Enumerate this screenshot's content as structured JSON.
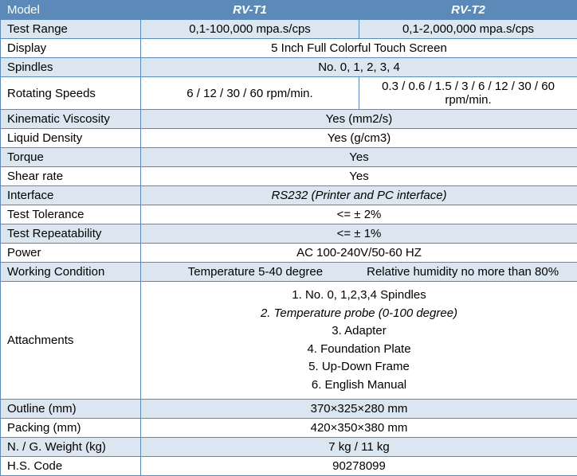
{
  "header": {
    "model": "Model",
    "m1": "RV-T1",
    "m2": "RV-T2"
  },
  "rows": {
    "test_range": {
      "label": "Test Range",
      "v1": "0,1-100,000 mpa.s/cps",
      "v2": "0,1-2,000,000 mpa.s/cps"
    },
    "display": {
      "label": "Display",
      "val": "5 Inch Full Colorful Touch Screen"
    },
    "spindles": {
      "label": "Spindles",
      "val": "No. 0, 1, 2, 3, 4"
    },
    "rot_speeds": {
      "label": "Rotating Speeds",
      "v1": "6 / 12 / 30 / 60 rpm/min.",
      "v2": "0.3 / 0.6 / 1.5 / 3 / 6 / 12 / 30 / 60 rpm/min."
    },
    "kin_visc": {
      "label": "Kinematic Viscosity",
      "val": "Yes (mm2/s)"
    },
    "liq_dens": {
      "label": "Liquid Density",
      "val": "Yes (g/cm3)"
    },
    "torque": {
      "label": "Torque",
      "val": "Yes"
    },
    "shear": {
      "label": "Shear rate",
      "val": "Yes"
    },
    "interface": {
      "label": "Interface",
      "val": "RS232 (Printer and PC interface)"
    },
    "tolerance": {
      "label": "Test Tolerance",
      "val": "<= ± 2%"
    },
    "repeat": {
      "label": "Test Repeatability",
      "val": "<= ± 1%"
    },
    "power": {
      "label": "Power",
      "val": "AC 100-240V/50-60 HZ"
    },
    "working": {
      "label": "Working Condition",
      "v1": "Temperature 5-40 degree",
      "v2": "Relative humidity no more than 80%"
    },
    "attach": {
      "label": "Attachments",
      "a1": "1.  No. 0, 1,2,3,4 Spindles",
      "a2": "2.  Temperature probe (0-100 degree)",
      "a3": "3.  Adapter",
      "a4": "4.  Foundation Plate",
      "a5": "5.  Up-Down Frame",
      "a6": "6.  English Manual"
    },
    "outline": {
      "label": "Outline (mm)",
      "val": "370×325×280 mm"
    },
    "packing": {
      "label": "Packing (mm)",
      "val": "420×350×380 mm"
    },
    "weight": {
      "label": "N. / G. Weight (kg)",
      "val": "7 kg / 11 kg"
    },
    "hscode": {
      "label": "H.S. Code",
      "val": "90278099"
    }
  }
}
